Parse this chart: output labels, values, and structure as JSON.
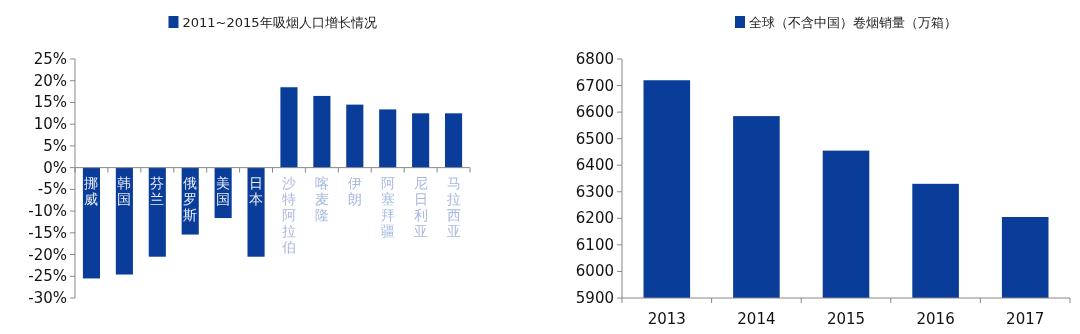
{
  "chart_data": [
    {
      "type": "bar",
      "legend": "top",
      "categories": [
        "挪威",
        "韩国",
        "芬兰",
        "俄罗斯",
        "美国",
        "日本",
        "沙特阿拉伯",
        "喀麦隆",
        "伊朗",
        "阿塞拜疆",
        "尼日利亚",
        "马拉西亚"
      ],
      "series": [
        {
          "name": "2011~2015年吸烟人口增长情况",
          "color": "#0a3d99",
          "values": [
            -25.5,
            -24.6,
            -20.5,
            -15.4,
            -11.6,
            -20.5,
            18.5,
            16.5,
            14.5,
            13.4,
            12.5,
            12.5
          ]
        }
      ],
      "ylim": [
        -30,
        25
      ],
      "yticks": [
        {
          "value": -30,
          "label": "-30%"
        },
        {
          "value": -25,
          "label": "-25%"
        },
        {
          "value": -20,
          "label": "-20%"
        },
        {
          "value": -15,
          "label": "-15%"
        },
        {
          "value": -10,
          "label": "-10%"
        },
        {
          "value": -5,
          "label": "-5%"
        },
        {
          "value": 0,
          "label": "0%"
        },
        {
          "value": 5,
          "label": "5%"
        },
        {
          "value": 10,
          "label": "10%"
        },
        {
          "value": 15,
          "label": "15%"
        },
        {
          "value": 20,
          "label": "20%"
        },
        {
          "value": 25,
          "label": "25%"
        }
      ]
    },
    {
      "type": "bar",
      "legend": "top",
      "categories": [
        "2013",
        "2014",
        "2015",
        "2016",
        "2017"
      ],
      "series": [
        {
          "name": "全球（不含中国）卷烟销量（万箱）",
          "color": "#0a3d99",
          "values": [
            6720,
            6585,
            6455,
            6330,
            6205
          ]
        }
      ],
      "ylim": [
        5900,
        6800
      ],
      "yticks": [
        5900,
        6000,
        6100,
        6200,
        6300,
        6400,
        6500,
        6600,
        6700,
        6800
      ]
    }
  ]
}
